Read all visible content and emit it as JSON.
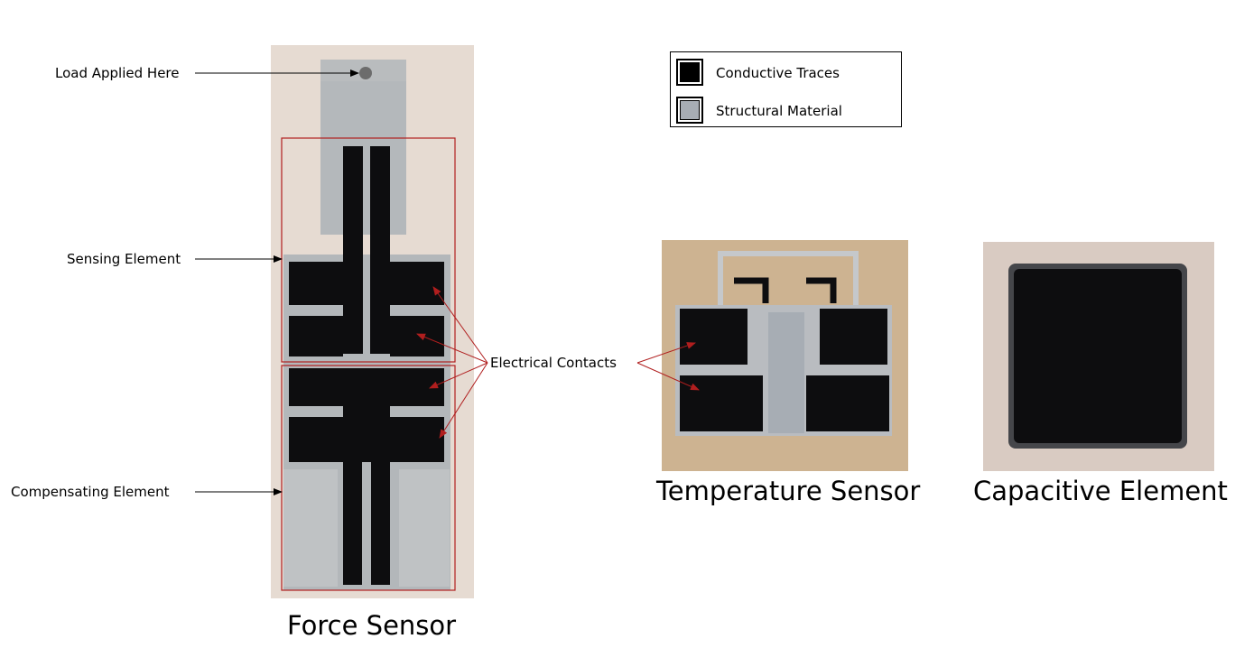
{
  "legend": {
    "items": [
      {
        "label": "Conductive Traces",
        "color": "#000000"
      },
      {
        "label": "Structural Material",
        "color": "#a7adb4"
      }
    ]
  },
  "annotations": {
    "load": "Load Applied Here",
    "sensing": "Sensing Element",
    "compensating": "Compensating Element",
    "contacts": "Electrical Contacts"
  },
  "captions": {
    "force": "Force Sensor",
    "temperature": "Temperature Sensor",
    "capacitive": "Capacitive Element"
  },
  "colors": {
    "conductive": "#0d0d0f",
    "structural": "#b9bdc0",
    "highlight_box": "#b01e1e",
    "arrow_black": "#000000",
    "arrow_red": "#b01e1e"
  }
}
